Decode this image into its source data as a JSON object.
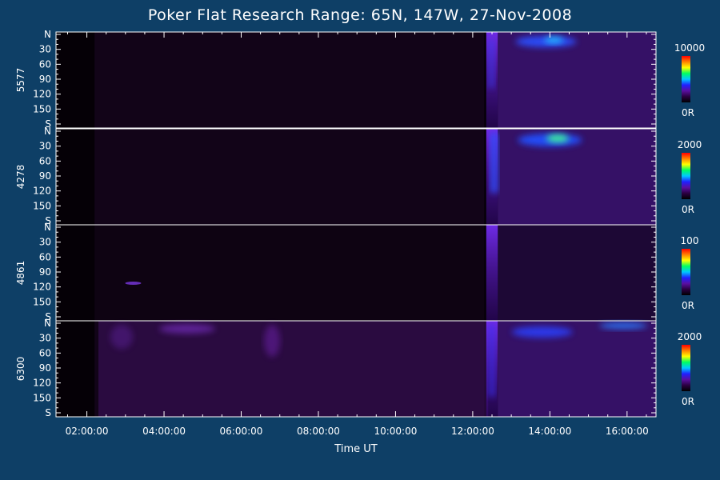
{
  "chart_data": {
    "type": "heatmap",
    "title": "Poker Flat Research Range: 65N, 147W, 27-Nov-2008",
    "xlabel": "Time UT",
    "x_tick_labels": [
      "02:00:00",
      "04:00:00",
      "06:00:00",
      "08:00:00",
      "10:00:00",
      "12:00:00",
      "14:00:00",
      "16:00:00"
    ],
    "x_ticks_hours": [
      2,
      4,
      6,
      8,
      10,
      12,
      14,
      16
    ],
    "xlim_hours": [
      1.2,
      16.75
    ],
    "y_tick_labels": [
      "N",
      "30",
      "60",
      "90",
      "120",
      "150",
      "S"
    ],
    "y_ticks_deg": [
      0,
      30,
      60,
      90,
      120,
      150,
      180
    ],
    "ylim_deg": [
      0,
      180
    ],
    "panels": [
      {
        "name": "5577",
        "scale_max": "10000",
        "scale_min": "0R"
      },
      {
        "name": "4278",
        "scale_max": "2000",
        "scale_min": "0R"
      },
      {
        "name": "4861",
        "scale_max": "100",
        "scale_min": "0R"
      },
      {
        "name": "6300",
        "scale_max": "2000",
        "scale_min": "0R"
      }
    ],
    "colors": {
      "background": "#0e3f66",
      "axis": "#ffffff",
      "colormap": [
        "#000000",
        "#2a0040",
        "#5a0fa0",
        "#2020ff",
        "#00c8ff",
        "#00ff60",
        "#ffff00",
        "#ff8000",
        "#ff0000"
      ]
    }
  }
}
